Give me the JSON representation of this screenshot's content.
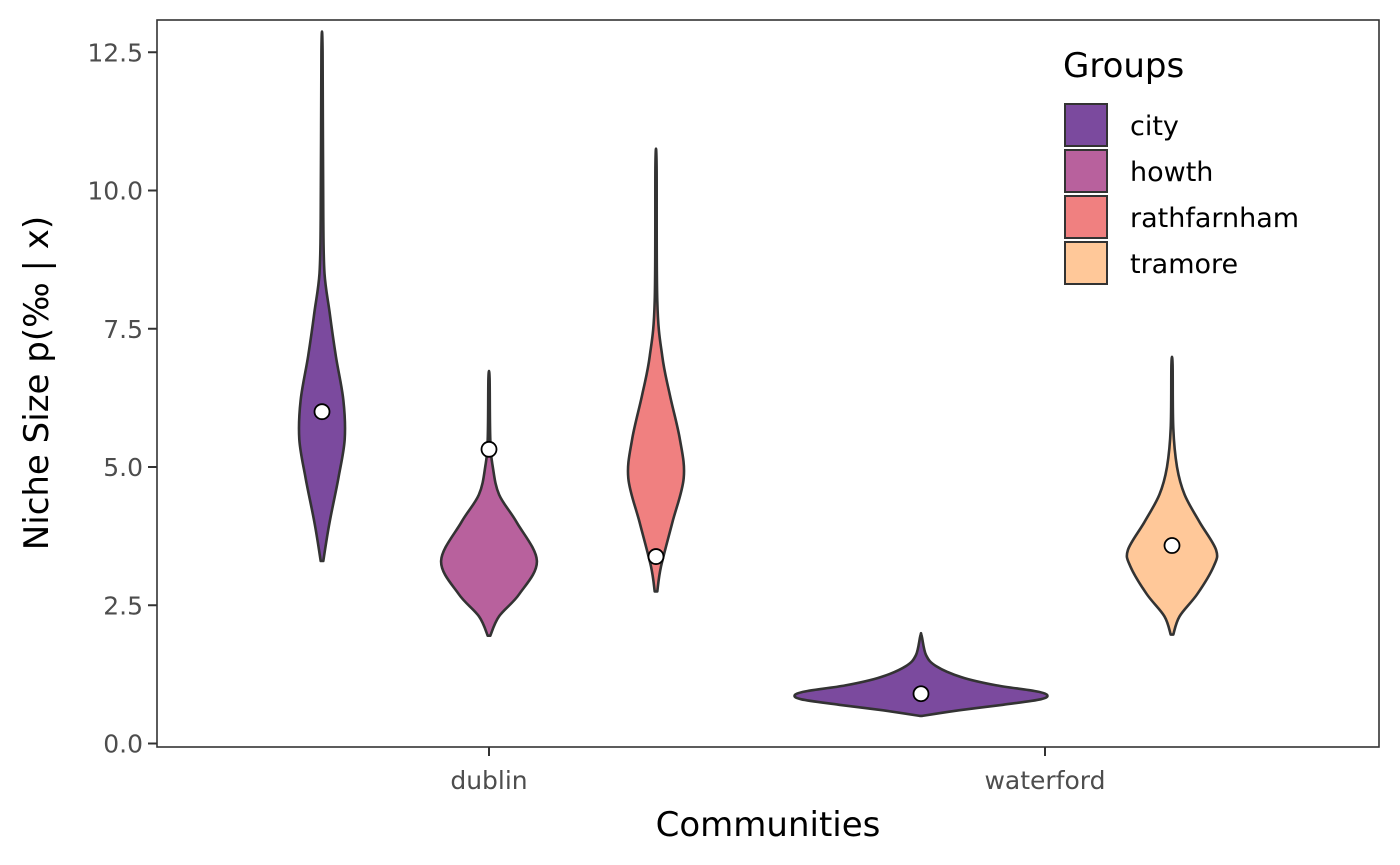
{
  "chart_data": {
    "type": "violin",
    "xlabel": "Communities",
    "ylabel": "Niche Size p(‰ | x)",
    "ylim": [
      0,
      12.5
    ],
    "yticks": [
      "0.0",
      "2.5",
      "5.0",
      "7.5",
      "10.0",
      "12.5"
    ],
    "ytick_values": [
      0,
      2.5,
      5,
      7.5,
      10,
      12.5
    ],
    "categories": [
      "dublin",
      "waterford"
    ],
    "grid": false,
    "legend": {
      "title": "Groups",
      "position": "top-right",
      "entries": [
        {
          "label": "city",
          "color": "#7b4a9e"
        },
        {
          "label": "howth",
          "color": "#b8619d"
        },
        {
          "label": "rathfarnham",
          "color": "#f08080"
        },
        {
          "label": "tramore",
          "color": "#ffc899"
        }
      ]
    },
    "series": [
      {
        "community": "dublin",
        "group": "city",
        "color": "#7b4a9e",
        "point": 6.0,
        "density": [
          [
            3.3,
            0.01
          ],
          [
            4.0,
            0.06
          ],
          [
            4.8,
            0.13
          ],
          [
            5.5,
            0.18
          ],
          [
            6.2,
            0.17
          ],
          [
            7.0,
            0.11
          ],
          [
            7.8,
            0.06
          ],
          [
            8.5,
            0.02
          ],
          [
            9.5,
            0.01
          ],
          [
            12.5,
            0.005
          ]
        ]
      },
      {
        "community": "dublin",
        "group": "howth",
        "color": "#b8619d",
        "point": 5.32,
        "density": [
          [
            1.95,
            0.01
          ],
          [
            2.3,
            0.08
          ],
          [
            2.7,
            0.24
          ],
          [
            3.3,
            0.38
          ],
          [
            4.0,
            0.22
          ],
          [
            4.5,
            0.08
          ],
          [
            5.0,
            0.03
          ],
          [
            5.5,
            0.01
          ],
          [
            6.6,
            0.005
          ]
        ]
      },
      {
        "community": "dublin",
        "group": "rathfarnham",
        "color": "#f08080",
        "point": 3.38,
        "density": [
          [
            2.75,
            0.01
          ],
          [
            3.2,
            0.04
          ],
          [
            4.0,
            0.13
          ],
          [
            4.8,
            0.22
          ],
          [
            5.5,
            0.19
          ],
          [
            6.3,
            0.11
          ],
          [
            7.0,
            0.05
          ],
          [
            8.0,
            0.01
          ],
          [
            10.45,
            0.005
          ]
        ]
      },
      {
        "community": "waterford",
        "group": "city",
        "color": "#7b4a9e",
        "point": 0.9,
        "density": [
          [
            0.5,
            0.01
          ],
          [
            0.6,
            0.3
          ],
          [
            0.7,
            0.65
          ],
          [
            0.8,
            0.95
          ],
          [
            0.88,
            1.0
          ],
          [
            0.95,
            0.9
          ],
          [
            1.05,
            0.6
          ],
          [
            1.2,
            0.32
          ],
          [
            1.4,
            0.12
          ],
          [
            1.6,
            0.04
          ],
          [
            1.95,
            0.005
          ]
        ]
      },
      {
        "community": "waterford",
        "group": "tramore",
        "color": "#ffc899",
        "point": 3.58,
        "density": [
          [
            1.97,
            0.01
          ],
          [
            2.3,
            0.06
          ],
          [
            2.7,
            0.2
          ],
          [
            3.2,
            0.33
          ],
          [
            3.5,
            0.35
          ],
          [
            4.0,
            0.22
          ],
          [
            4.5,
            0.1
          ],
          [
            5.0,
            0.04
          ],
          [
            5.7,
            0.01
          ],
          [
            6.85,
            0.005
          ]
        ]
      }
    ]
  }
}
